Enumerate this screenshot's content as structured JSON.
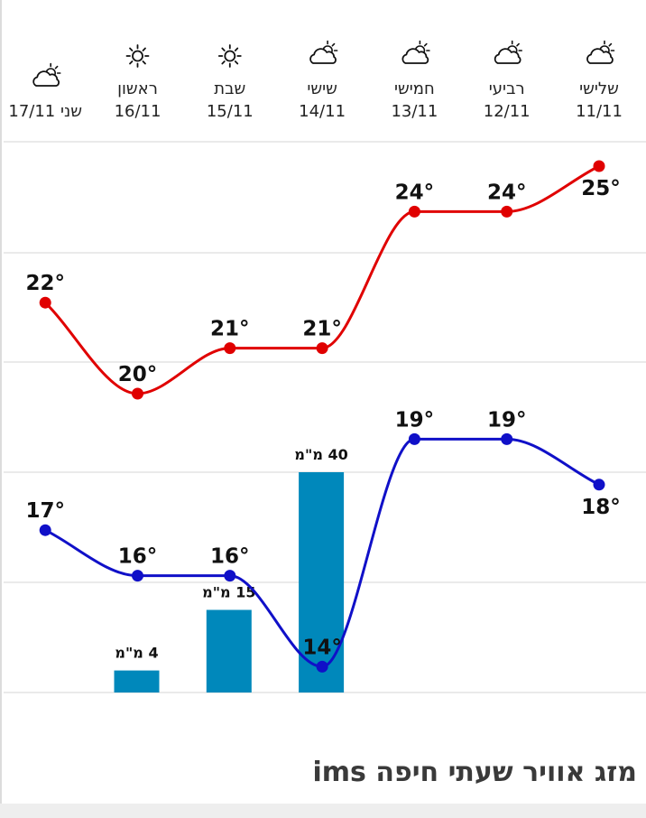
{
  "chart_data": {
    "type": "line",
    "days": [
      {
        "name": "שלישי",
        "date": "11/11",
        "icon": "partly-cloudy-icon"
      },
      {
        "name": "רביעי",
        "date": "12/11",
        "icon": "partly-cloudy-icon"
      },
      {
        "name": "חמישי",
        "date": "13/11",
        "icon": "partly-cloudy-icon"
      },
      {
        "name": "שישי",
        "date": "14/11",
        "icon": "partly-cloudy-icon"
      },
      {
        "name": "שבת",
        "date": "15/11",
        "icon": "sun-icon"
      },
      {
        "name": "ראשון",
        "date": "16/11",
        "icon": "sun-icon"
      },
      {
        "name": "שני",
        "date": "17/11",
        "icon": "partly-cloudy-icon"
      }
    ],
    "series": [
      {
        "values": [
          25,
          24,
          24,
          21,
          21,
          20,
          22
        ],
        "labels": [
          "25°",
          "24°",
          "24°",
          "21°",
          "21°",
          "20°",
          "22°"
        ],
        "color": "#e00000"
      },
      {
        "values": [
          18,
          19,
          19,
          14,
          16,
          16,
          17
        ],
        "labels": [
          "18°",
          "19°",
          "19°",
          "14°",
          "16°",
          "16°",
          "17°"
        ],
        "color": "#1010c8"
      }
    ],
    "precipitation": {
      "values": [
        null,
        null,
        null,
        40,
        15,
        4,
        null
      ],
      "labels": [
        "",
        "",
        "",
        "40 מ\"מ",
        "15 מ\"מ",
        "4 מ\"מ",
        ""
      ],
      "color": "#0088bb"
    }
  },
  "section_title": "מזג אוויר שעתי חיפה ims"
}
